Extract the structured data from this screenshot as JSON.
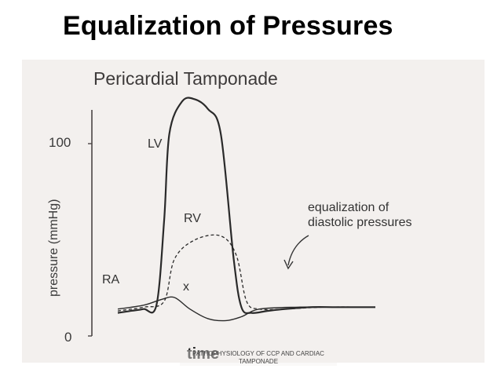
{
  "slide": {
    "title": "Equalization of Pressures",
    "footer": "PATHOPHYSIOLOGY OF CCP AND CARDIAC TAMPONADE"
  },
  "figure": {
    "title": "Pericardial Tamponade",
    "ylabel": "pressure (mmHg)",
    "xlabel": "time",
    "tick_100": "100",
    "tick_0": "0",
    "label_lv": "LV",
    "label_rv": "RV",
    "label_ra": "RA",
    "label_x": "x",
    "annotation_line1": "equalization of",
    "annotation_line2": "diastolic pressures"
  },
  "chart_data": {
    "type": "line",
    "title": "Pericardial Tamponade",
    "xlabel": "time",
    "ylabel": "pressure (mmHg)",
    "ylim": [
      0,
      125
    ],
    "yticks": [
      0,
      100
    ],
    "series": [
      {
        "name": "LV",
        "x": [
          0,
          5,
          10,
          15,
          18,
          20,
          25,
          30,
          35,
          40,
          45,
          48,
          52,
          58,
          65,
          75,
          85,
          100
        ],
        "y": [
          12,
          13,
          14,
          16,
          60,
          105,
          122,
          123,
          118,
          105,
          40,
          15,
          12,
          13,
          14,
          15,
          15,
          15
        ]
      },
      {
        "name": "RV",
        "x": [
          0,
          10,
          18,
          22,
          30,
          40,
          46,
          50,
          55,
          65,
          80,
          100
        ],
        "y": [
          13,
          15,
          18,
          40,
          50,
          52,
          42,
          18,
          14,
          14,
          15,
          15
        ]
      },
      {
        "name": "RA",
        "x": [
          0,
          10,
          17,
          22,
          28,
          35,
          42,
          48,
          55,
          70,
          85,
          100
        ],
        "y": [
          14,
          16,
          19,
          20,
          14,
          9,
          8,
          10,
          14,
          15,
          15,
          15
        ]
      }
    ],
    "annotations": [
      "x",
      "equalization of diastolic pressures"
    ],
    "colors": {
      "curves": "#2a2a2a",
      "background": "#f3f0ee"
    }
  }
}
